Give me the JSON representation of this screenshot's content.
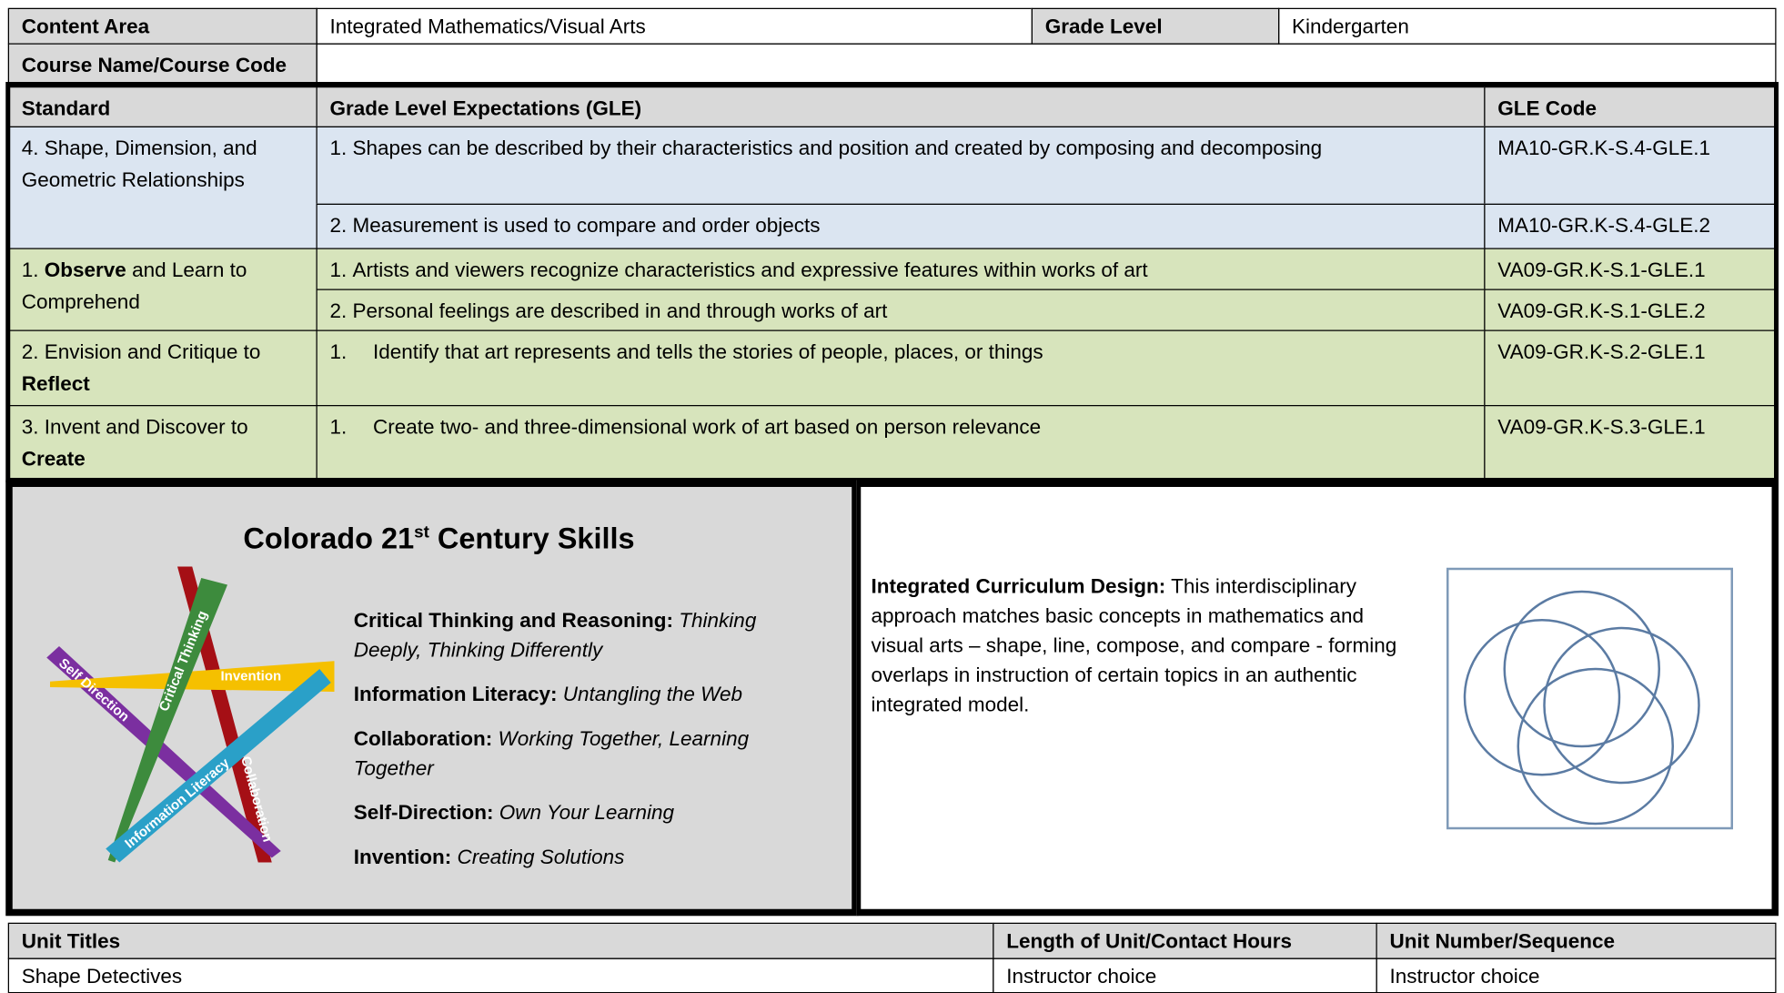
{
  "header": {
    "content_area_label": "Content Area",
    "content_area": "Integrated Mathematics/Visual Arts",
    "grade_level_label": "Grade Level",
    "grade_level": "Kindergarten",
    "course_label": "Course Name/Course Code"
  },
  "standards_table": {
    "headers": [
      "Standard",
      "Grade Level Expectations (GLE)",
      "GLE Code"
    ],
    "rows": [
      {
        "color": "#dbe5f1",
        "standard": [
          {
            "text": "4. Shape, Dimension, and Geometric Relationships"
          }
        ],
        "gles": [
          {
            "number": "1.",
            "text": "Shapes can be described by their characteristics and position and created by composing and decomposing",
            "code": "MA10-GR.K-S.4-GLE.1"
          },
          {
            "number": "2.",
            "text": "Measurement is used to compare and order objects",
            "code": "MA10-GR.K-S.4-GLE.2"
          }
        ]
      },
      {
        "color": "#d7e4bc",
        "standard": [
          {
            "text": "1. "
          },
          {
            "text": "Observe",
            "bold": true
          },
          {
            "text": " and Learn to Comprehend"
          }
        ],
        "gles": [
          {
            "number": "1.",
            "text": "Artists and viewers recognize characteristics and expressive features within works of art",
            "code": "VA09-GR.K-S.1-GLE.1"
          },
          {
            "number": "2.",
            "text": "Personal feelings are described in and through works of art",
            "code": "VA09-GR.K-S.1-GLE.2"
          }
        ]
      },
      {
        "color": "#d7e4bc",
        "standard": [
          {
            "text": "2. Envision and Critique to "
          },
          {
            "text": "Reflect",
            "bold": true
          }
        ],
        "gles": [
          {
            "number": "1.",
            "indented": true,
            "text": "Identify that art represents and tells the stories of people, places, or things",
            "code": "VA09-GR.K-S.2-GLE.1"
          }
        ]
      },
      {
        "color": "#d7e4bc",
        "standard": [
          {
            "text": "3. Invent and Discover to "
          },
          {
            "text": "Create",
            "bold": true
          }
        ],
        "gles": [
          {
            "number": "1.",
            "indented": true,
            "text": "Create two- and three-dimensional work of art based on person relevance",
            "code": "VA09-GR.K-S.3-GLE.1"
          }
        ]
      }
    ]
  },
  "skills": {
    "title": [
      "Colorado 21",
      "st",
      " Century Skills"
    ],
    "star_labels": [
      "Critical Thinking",
      "Invention",
      "Self Direction",
      "Information Literacy",
      "Collaboration"
    ],
    "items": [
      {
        "name": "Critical Thinking and Reasoning:",
        "desc": "Thinking Deeply, Thinking Differently"
      },
      {
        "name": "Information Literacy:",
        "desc": "Untangling the Web"
      },
      {
        "name": "Collaboration:",
        "desc": "Working Together, Learning Together"
      },
      {
        "name": "Self-Direction:",
        "desc": "Own Your Learning"
      },
      {
        "name": "Invention:",
        "desc": "Creating Solutions"
      }
    ]
  },
  "design": {
    "label": "Integrated Curriculum Design:",
    "text": "This interdisciplinary approach matches basic concepts in mathematics and visual arts – shape, line, compose, and compare - forming overlaps in instruction of certain topics in an authentic integrated model."
  },
  "unit_table": {
    "headers": [
      "Unit Titles",
      "Length of Unit/Contact Hours",
      "Unit Number/Sequence"
    ],
    "row": [
      "Shape Detectives",
      "Instructor choice",
      "Instructor choice"
    ]
  }
}
